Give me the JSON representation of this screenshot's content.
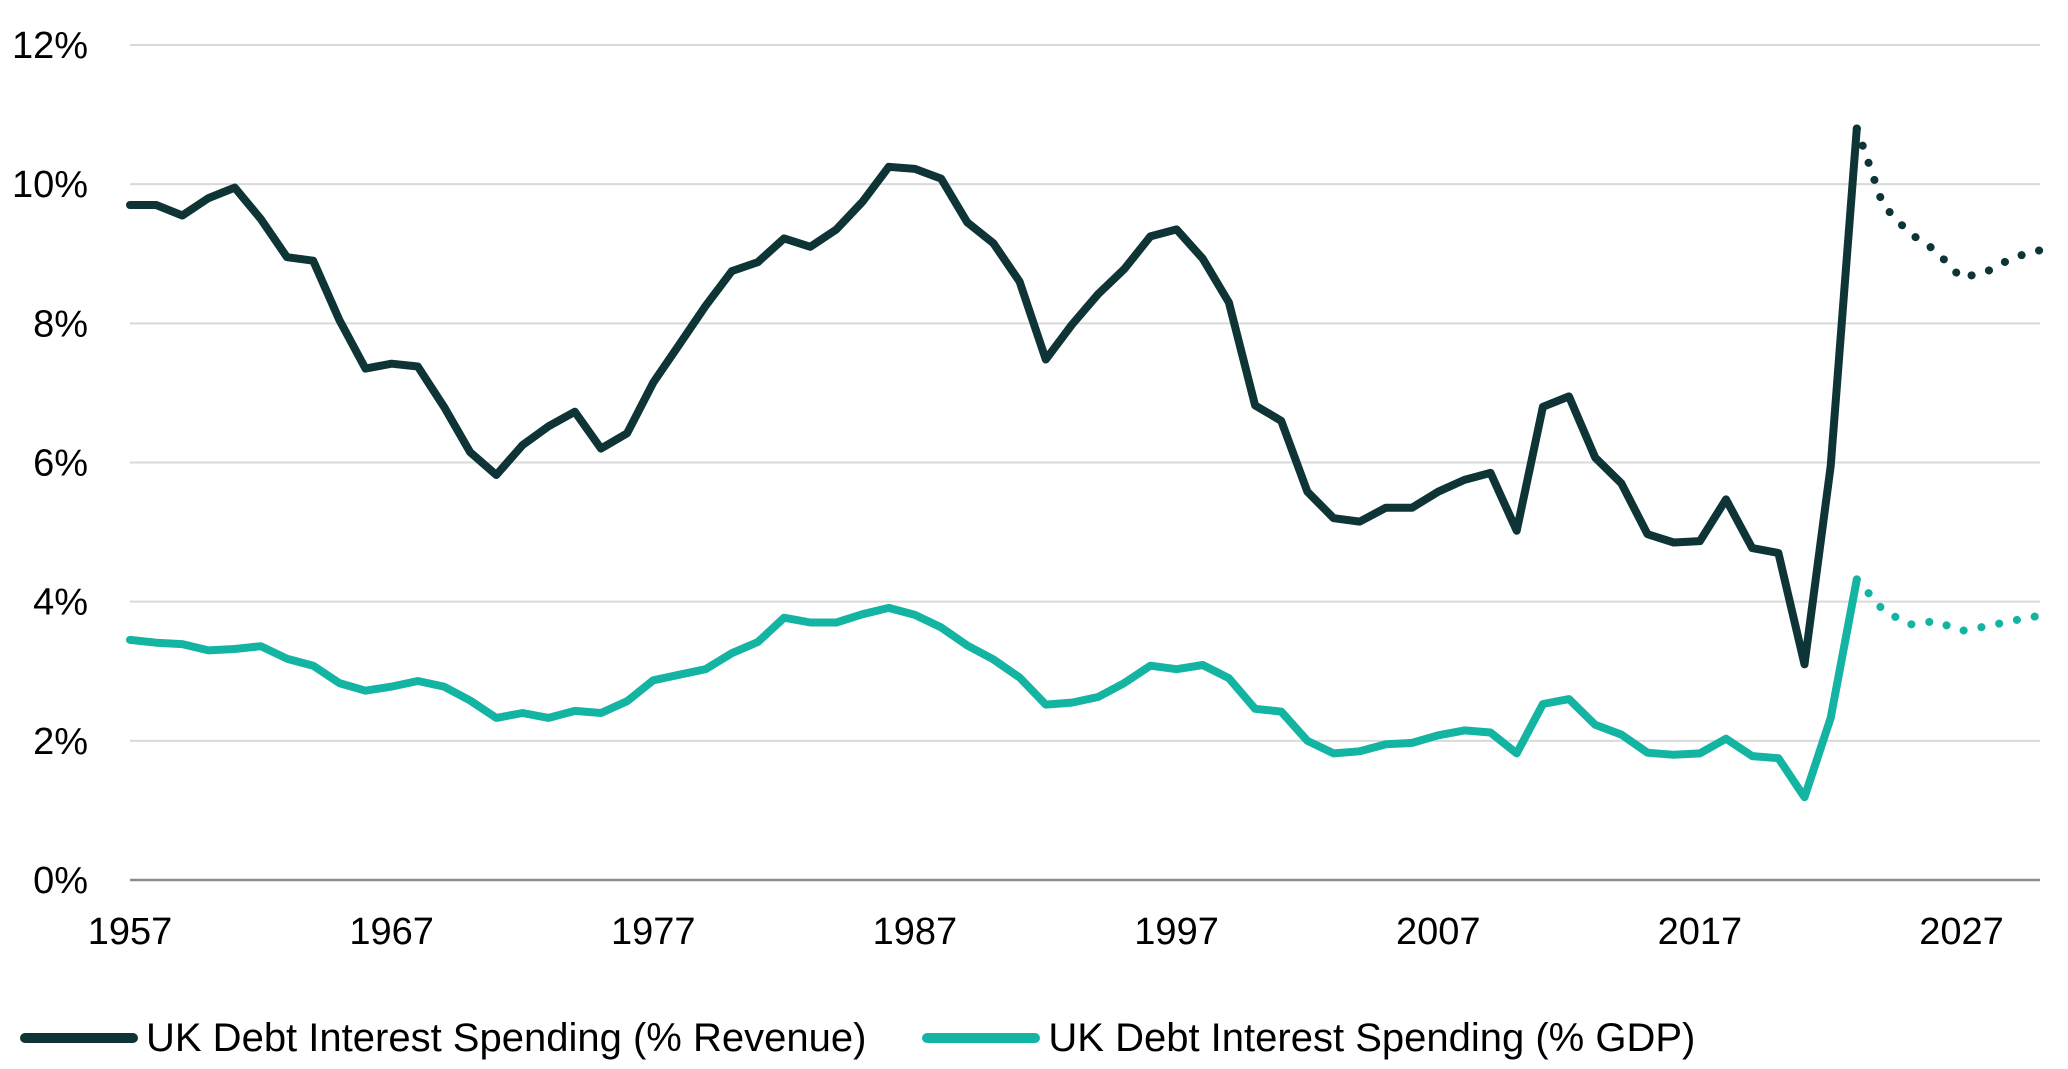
{
  "chart_data": {
    "type": "line",
    "title": "",
    "xlabel": "",
    "ylabel": "",
    "xlim": [
      1957,
      2030
    ],
    "ylim": [
      0,
      12
    ],
    "x_ticks": [
      1957,
      1967,
      1977,
      1987,
      1997,
      2007,
      2017,
      2027
    ],
    "x_tick_labels": [
      "1957",
      "1967",
      "1977",
      "1987",
      "1997",
      "2007",
      "2017",
      "2027"
    ],
    "y_ticks": [
      0,
      2,
      4,
      6,
      8,
      10,
      12
    ],
    "y_tick_labels": [
      "0%",
      "2%",
      "4%",
      "6%",
      "8%",
      "10%",
      "12%"
    ],
    "grid": "horizontal",
    "legend_position": "bottom-left",
    "forecast_style": "dotted",
    "series": [
      {
        "name": "UK Debt Interest Spending (% Revenue)",
        "color": "#0e3435",
        "x": [
          1957,
          1958,
          1959,
          1960,
          1961,
          1962,
          1963,
          1964,
          1965,
          1966,
          1967,
          1968,
          1969,
          1970,
          1971,
          1972,
          1973,
          1974,
          1975,
          1976,
          1977,
          1978,
          1979,
          1980,
          1981,
          1982,
          1983,
          1984,
          1985,
          1986,
          1987,
          1988,
          1989,
          1990,
          1991,
          1992,
          1993,
          1994,
          1995,
          1996,
          1997,
          1998,
          1999,
          2000,
          2001,
          2002,
          2003,
          2004,
          2005,
          2006,
          2007,
          2008,
          2009,
          2010,
          2011,
          2012,
          2013,
          2014,
          2015,
          2016,
          2017,
          2018,
          2019,
          2020,
          2021,
          2022,
          2023
        ],
        "values": [
          9.7,
          9.7,
          9.55,
          9.8,
          9.95,
          9.5,
          8.95,
          8.9,
          8.05,
          7.35,
          7.42,
          7.38,
          6.8,
          6.15,
          5.82,
          6.25,
          6.52,
          6.73,
          6.2,
          6.42,
          7.15,
          7.7,
          8.25,
          8.75,
          8.88,
          9.22,
          9.1,
          9.35,
          9.75,
          10.25,
          10.22,
          10.08,
          9.45,
          9.15,
          8.6,
          7.48,
          7.98,
          8.42,
          8.78,
          9.25,
          9.35,
          8.93,
          8.3,
          6.82,
          6.6,
          5.58,
          5.2,
          5.15,
          5.35,
          5.35,
          5.58,
          5.75,
          5.85,
          5.02,
          6.8,
          6.95,
          6.07,
          5.7,
          4.97,
          4.85,
          4.87,
          5.47,
          4.77,
          4.7,
          3.1,
          5.95,
          10.8
        ],
        "forecast_x": [
          2023,
          2024,
          2025,
          2026,
          2027,
          2028,
          2029,
          2030
        ],
        "forecast_values": [
          10.8,
          9.7,
          9.3,
          9.05,
          8.65,
          8.75,
          8.95,
          9.05
        ]
      },
      {
        "name": "UK Debt Interest Spending (% GDP)",
        "color": "#14b4a2",
        "x": [
          1957,
          1958,
          1959,
          1960,
          1961,
          1962,
          1963,
          1964,
          1965,
          1966,
          1967,
          1968,
          1969,
          1970,
          1971,
          1972,
          1973,
          1974,
          1975,
          1976,
          1977,
          1978,
          1979,
          1980,
          1981,
          1982,
          1983,
          1984,
          1985,
          1986,
          1987,
          1988,
          1989,
          1990,
          1991,
          1992,
          1993,
          1994,
          1995,
          1996,
          1997,
          1998,
          1999,
          2000,
          2001,
          2002,
          2003,
          2004,
          2005,
          2006,
          2007,
          2008,
          2009,
          2010,
          2011,
          2012,
          2013,
          2014,
          2015,
          2016,
          2017,
          2018,
          2019,
          2020,
          2021,
          2022,
          2023
        ],
        "values": [
          3.45,
          3.41,
          3.39,
          3.3,
          3.32,
          3.36,
          3.18,
          3.08,
          2.83,
          2.72,
          2.78,
          2.86,
          2.78,
          2.58,
          2.33,
          2.4,
          2.33,
          2.43,
          2.4,
          2.57,
          2.87,
          2.95,
          3.03,
          3.26,
          3.42,
          3.77,
          3.7,
          3.7,
          3.82,
          3.91,
          3.81,
          3.63,
          3.37,
          3.17,
          2.91,
          2.52,
          2.55,
          2.63,
          2.83,
          3.08,
          3.03,
          3.09,
          2.9,
          2.46,
          2.42,
          2.0,
          1.82,
          1.85,
          1.95,
          1.97,
          2.08,
          2.15,
          2.12,
          1.82,
          2.53,
          2.6,
          2.23,
          2.09,
          1.83,
          1.8,
          1.82,
          2.03,
          1.78,
          1.75,
          1.19,
          2.33,
          4.32
        ],
        "forecast_x": [
          2023,
          2024,
          2025,
          2026,
          2027,
          2028,
          2029,
          2030
        ],
        "forecast_values": [
          4.32,
          3.88,
          3.67,
          3.72,
          3.58,
          3.65,
          3.73,
          3.8
        ]
      }
    ]
  }
}
